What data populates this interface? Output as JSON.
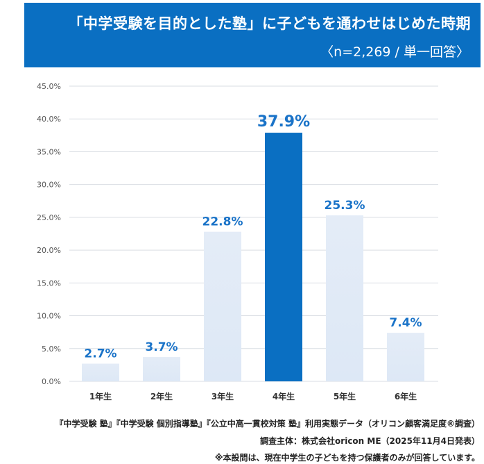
{
  "header": {
    "title": "「中学受験を目的とした塾」に子どもを通わせはじめた時期",
    "subtitle": "〈n=2,269 / 単一回答〉"
  },
  "chart_data": {
    "type": "bar",
    "title": "「中学受験を目的とした塾」に子どもを通わせはじめた時期",
    "categories": [
      "1年生",
      "2年生",
      "3年生",
      "4年生",
      "5年生",
      "6年生"
    ],
    "values": [
      2.7,
      3.7,
      22.8,
      37.9,
      25.3,
      7.4
    ],
    "data_labels": [
      "2.7%",
      "3.7%",
      "22.8%",
      "37.9%",
      "25.3%",
      "7.4%"
    ],
    "highlight_index": 3,
    "ylim": [
      0,
      45
    ],
    "yticks": [
      "0.0%",
      "5.0%",
      "10.0%",
      "15.0%",
      "20.0%",
      "25.0%",
      "30.0%",
      "35.0%",
      "40.0%",
      "45.0%"
    ],
    "grid": true,
    "xlabel": "",
    "ylabel": "",
    "colors": {
      "bar": "#dde8f6",
      "highlight": "#0a6fc2",
      "label": "#1a73c8"
    }
  },
  "footer": {
    "source": "『中学受験 塾』『中学受験 個別指導塾』『公立中高一貫校対策 塾』利用実態データ（オリコン顧客満足度®調査）",
    "organizer": "調査主体：株式会社oricon ME（2025年11月4日発表）",
    "note": "※本設問は、現在中学生の子どもを持つ保護者のみが回答しています。"
  }
}
